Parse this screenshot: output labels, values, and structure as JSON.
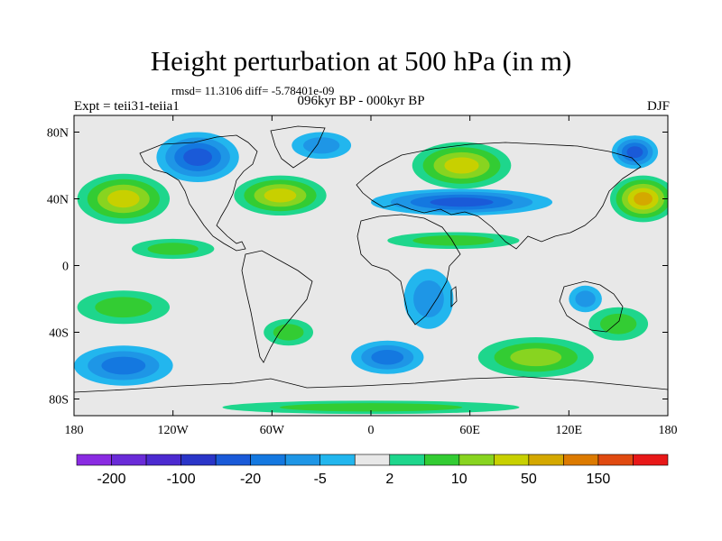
{
  "title": "Height perturbation at 500 hPa (in m)",
  "rmsd_line": "rmsd= 11.3106 diff= -5.78401e-09",
  "experiment": "Expt = teii31-teiia1",
  "period": "096kyr BP - 000kyr BP",
  "season": "DJF",
  "map": {
    "lon_ticks": [
      {
        "lon": -180,
        "label": "180"
      },
      {
        "lon": -120,
        "label": "120W"
      },
      {
        "lon": -60,
        "label": "60W"
      },
      {
        "lon": 0,
        "label": "0"
      },
      {
        "lon": 60,
        "label": "60E"
      },
      {
        "lon": 120,
        "label": "120E"
      },
      {
        "lon": 180,
        "label": "180"
      }
    ],
    "lat_ticks": [
      {
        "lat": 80,
        "label": "80N"
      },
      {
        "lat": 40,
        "label": "40N"
      },
      {
        "lat": 0,
        "label": "0"
      },
      {
        "lat": -40,
        "label": "40S"
      },
      {
        "lat": -80,
        "label": "80S"
      }
    ],
    "lat_range": [
      -90,
      90
    ],
    "lon_range": [
      -180,
      180
    ]
  },
  "colorbar": {
    "colors": [
      "#8a2be2",
      "#6a2bd8",
      "#4c2ad0",
      "#2a35c8",
      "#1a5ad8",
      "#1478e0",
      "#1e96e6",
      "#22b6ee",
      "#e8e8e8",
      "#1ed68c",
      "#33cc33",
      "#88d420",
      "#c8d000",
      "#d4a800",
      "#dc7a00",
      "#e04a10",
      "#e81818"
    ],
    "labels": [
      {
        "index": 1,
        "text": "-200"
      },
      {
        "index": 3,
        "text": "-100"
      },
      {
        "index": 5,
        "text": "-20"
      },
      {
        "index": 7,
        "text": "-5"
      },
      {
        "index": 9,
        "text": "2"
      },
      {
        "index": 11,
        "text": "10"
      },
      {
        "index": 13,
        "text": "50"
      },
      {
        "index": 15,
        "text": "150"
      }
    ]
  },
  "anomaly_centers": [
    {
      "lon": -150,
      "lat": 40,
      "level": 3,
      "sx": 28,
      "sy": 15
    },
    {
      "lon": -55,
      "lat": 42,
      "level": 3,
      "sx": 28,
      "sy": 12
    },
    {
      "lon": 55,
      "lat": 60,
      "level": 3,
      "sx": 30,
      "sy": 14
    },
    {
      "lon": 165,
      "lat": 40,
      "level": 4,
      "sx": 20,
      "sy": 14
    },
    {
      "lon": -105,
      "lat": 65,
      "level": -3,
      "sx": 25,
      "sy": 15
    },
    {
      "lon": 55,
      "lat": 38,
      "level": -3,
      "sx": 55,
      "sy": 8
    },
    {
      "lon": 160,
      "lat": 68,
      "level": -3,
      "sx": 14,
      "sy": 10
    },
    {
      "lon": -30,
      "lat": 72,
      "level": -1,
      "sx": 18,
      "sy": 8
    },
    {
      "lon": -150,
      "lat": -60,
      "level": -2,
      "sx": 30,
      "sy": 12
    },
    {
      "lon": 10,
      "lat": -55,
      "level": -2,
      "sx": 22,
      "sy": 10
    },
    {
      "lon": 35,
      "lat": -20,
      "level": -1,
      "sx": 15,
      "sy": 18
    },
    {
      "lon": 130,
      "lat": -20,
      "level": -1,
      "sx": 10,
      "sy": 8
    },
    {
      "lon": 100,
      "lat": -55,
      "level": 2,
      "sx": 35,
      "sy": 12
    },
    {
      "lon": -150,
      "lat": -25,
      "level": 1,
      "sx": 28,
      "sy": 10
    },
    {
      "lon": 150,
      "lat": -35,
      "level": 1,
      "sx": 18,
      "sy": 10
    },
    {
      "lon": -50,
      "lat": -40,
      "level": 1,
      "sx": 15,
      "sy": 8
    },
    {
      "lon": -120,
      "lat": 10,
      "level": 1,
      "sx": 25,
      "sy": 6
    },
    {
      "lon": 50,
      "lat": 15,
      "level": 1,
      "sx": 40,
      "sy": 5
    },
    {
      "lon": 0,
      "lat": -85,
      "level": 1,
      "sx": 90,
      "sy": 4
    }
  ]
}
